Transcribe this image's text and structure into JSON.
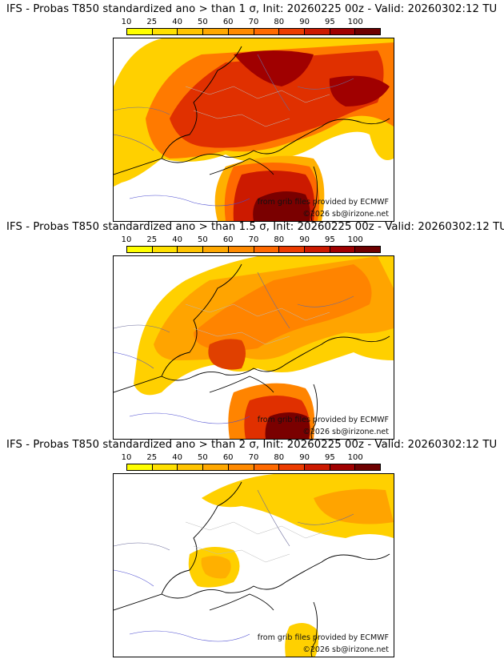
{
  "colorbar": {
    "ticks": [
      "10",
      "25",
      "40",
      "50",
      "60",
      "70",
      "80",
      "90",
      "95",
      "100"
    ],
    "colors": [
      "#ffff00",
      "#ffe000",
      "#ffc400",
      "#ffa800",
      "#ff8a00",
      "#ff6a00",
      "#ec3c00",
      "#cc1a00",
      "#a00000",
      "#6e0000"
    ]
  },
  "panels": [
    {
      "title": "IFS - Probas T850  standardized ano > than 1 σ, Init: 20260225 00z - Valid: 20260302:12 TU",
      "credit": "from grib files provided by ECMWF",
      "copyright": "©2026 sb@irizone.net",
      "intensity": "high"
    },
    {
      "title": "IFS - Probas T850  standardized ano > than 1.5 σ, Init: 20260225 00z - Valid: 20260302:12 TU",
      "credit": "from grib files provided by ECMWF",
      "copyright": "©2026 sb@irizone.net",
      "intensity": "medium"
    },
    {
      "title": "IFS - Probas T850  standardized ano > than 2 σ, Init: 20260225 00z - Valid: 20260302:12 TU",
      "credit": "from grib files provided by ECMWF",
      "copyright": "©2026 sb@irizone.net",
      "intensity": "low"
    }
  ]
}
